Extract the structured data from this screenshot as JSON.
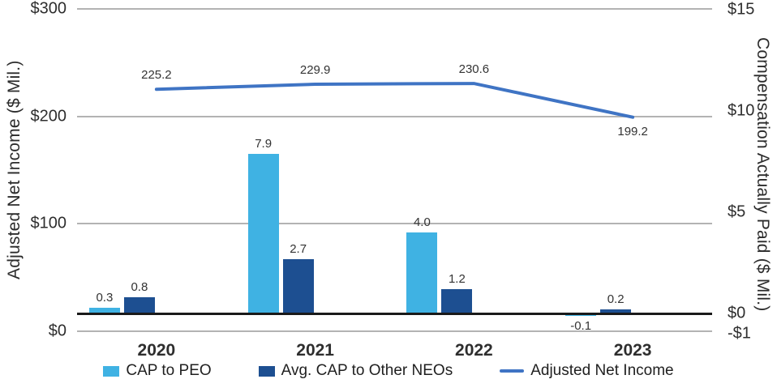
{
  "chart_data": {
    "type": "combo-bar-line",
    "title": "",
    "categories": [
      "2020",
      "2021",
      "2022",
      "2023"
    ],
    "series": [
      {
        "name": "CAP to PEO",
        "type": "bar",
        "axis": "right",
        "color": "#3fb2e3",
        "values": [
          0.3,
          7.9,
          4.0,
          -0.1
        ],
        "labels": [
          "0.3",
          "7.9",
          "4.0",
          "-0.1"
        ]
      },
      {
        "name": "Avg. CAP to Other NEOs",
        "type": "bar",
        "axis": "right",
        "color": "#1d4f91",
        "values": [
          0.8,
          2.7,
          1.2,
          0.2
        ],
        "labels": [
          "0.8",
          "2.7",
          "1.2",
          "0.2"
        ]
      },
      {
        "name": "Adjusted Net Income",
        "type": "line",
        "axis": "left",
        "color": "#3f74c4",
        "values": [
          225.2,
          229.9,
          230.6,
          199.2
        ],
        "labels": [
          "225.2",
          "229.9",
          "230.6",
          "199.2"
        ],
        "label_positions": [
          "above",
          "above",
          "above",
          "below"
        ]
      }
    ],
    "left_axis": {
      "title": "Adjusted Net Income ($ Mil.)",
      "ticks": [
        "$300",
        "$200",
        "$100",
        "$0"
      ],
      "tick_values": [
        300,
        200,
        100,
        0
      ],
      "range": [
        0,
        300
      ],
      "grid": true
    },
    "right_axis": {
      "title": "Compensation Actually Paid ($ Mil.)",
      "ticks": [
        "$15",
        "$10",
        "$5",
        "$0",
        "-$1"
      ],
      "tick_values": [
        15,
        10,
        5,
        0,
        -1
      ],
      "range": [
        -1,
        15
      ],
      "grid": false
    },
    "legend_position": "bottom",
    "colors": {
      "grid": "#b3b3b3",
      "zero_line": "#1a1a1a",
      "text": "#2e2e2e"
    }
  }
}
